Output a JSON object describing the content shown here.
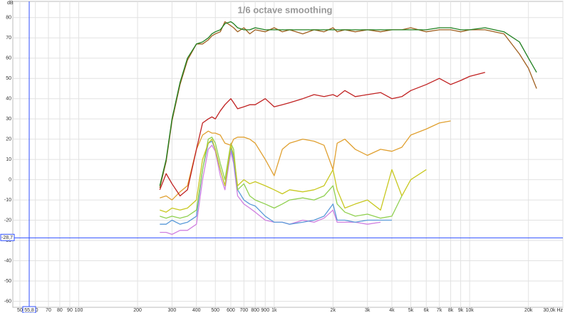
{
  "chart_data": {
    "type": "line",
    "title": "1/6 octave smoothing",
    "y_label": "dB",
    "log_x": true,
    "grid": true,
    "xlim": [
      46,
      30000
    ],
    "ylim": [
      -63,
      88
    ],
    "xticks": [
      50,
      60,
      70,
      80,
      90,
      100,
      200,
      300,
      400,
      500,
      600,
      700,
      800,
      900,
      {
        "value": 1000,
        "label": "1k"
      },
      {
        "value": 2000,
        "label": "2k"
      },
      {
        "value": 3000,
        "label": "3k"
      },
      {
        "value": 4000,
        "label": "4k"
      },
      {
        "value": 5000,
        "label": "5k"
      },
      {
        "value": 6000,
        "label": "6k"
      },
      {
        "value": 7000,
        "label": "7k"
      },
      {
        "value": 8000,
        "label": "8k"
      },
      {
        "value": 9000,
        "label": "9k"
      },
      {
        "value": 10000,
        "label": "10k"
      },
      {
        "value": 20000,
        "label": "20k"
      },
      {
        "value": 30000,
        "label": "30,0k Hz"
      }
    ],
    "yticks": [
      -60,
      -50,
      -40,
      -30,
      -20,
      -10,
      0,
      10,
      20,
      30,
      40,
      50,
      60,
      70,
      80
    ],
    "cursor": {
      "x": {
        "value": 55.8,
        "label": "55,8"
      },
      "y": {
        "value": -28.7,
        "label": "-28,7"
      },
      "color": "#3050ff"
    },
    "x": [
      260,
      280,
      300,
      330,
      360,
      400,
      430,
      460,
      480,
      500,
      530,
      560,
      600,
      620,
      650,
      700,
      750,
      800,
      900,
      1000,
      1100,
      1200,
      1400,
      1600,
      1800,
      2000,
      2100,
      2300,
      2600,
      3000,
      3500,
      4000,
      4500,
      5000,
      6000,
      7000,
      8000,
      9000,
      10000,
      12000,
      15000,
      18000,
      20000,
      22000
    ],
    "series": [
      {
        "color": "#d080e0",
        "values": [
          -26,
          -26,
          -27,
          -25,
          -25,
          -22,
          0,
          15,
          17,
          14,
          2,
          -5,
          14,
          8,
          -8,
          -12,
          -14,
          -16,
          -20,
          -21,
          -21,
          -22,
          -20,
          -21,
          -19,
          -15,
          -21,
          -21,
          -21,
          -22,
          -21,
          null,
          null,
          null,
          null,
          null,
          null,
          null,
          null,
          null,
          null,
          null,
          null,
          null
        ]
      },
      {
        "color": "#5a9ad8",
        "values": [
          -22,
          -22,
          -20,
          -22,
          -21,
          -18,
          5,
          18,
          19,
          15,
          5,
          -3,
          16,
          10,
          -5,
          -10,
          -12,
          -13,
          -18,
          -21,
          -21,
          -22,
          -21,
          -20,
          -18,
          -12,
          -20,
          -20,
          -21,
          -20,
          -20,
          -20,
          null,
          null,
          null,
          null,
          null,
          null,
          null,
          null,
          null,
          null,
          null,
          null
        ]
      },
      {
        "color": "#90d050",
        "values": [
          -18,
          -19,
          -18,
          -19,
          -18,
          -15,
          5,
          20,
          21,
          18,
          8,
          0,
          18,
          15,
          -5,
          -2,
          -8,
          -10,
          -12,
          -14,
          -12,
          -10,
          -9,
          -10,
          -8,
          -3,
          -12,
          -16,
          -18,
          -17,
          -19,
          -18,
          -8,
          null,
          null,
          null,
          null,
          null,
          null,
          null,
          null,
          null,
          null,
          null
        ]
      },
      {
        "color": "#c8c820",
        "values": [
          -15,
          -16,
          -14,
          -15,
          -14,
          -10,
          10,
          18,
          20,
          15,
          5,
          -3,
          17,
          12,
          -3,
          0,
          -2,
          -1,
          -3,
          -5,
          -7,
          -5,
          -6,
          -5,
          -3,
          5,
          -5,
          -14,
          -12,
          -10,
          -15,
          5,
          -8,
          0,
          5,
          null,
          null,
          null,
          null,
          null,
          null,
          null,
          null,
          null
        ]
      },
      {
        "color": "#e0a030",
        "values": [
          -9,
          -8,
          -10,
          -6,
          -3,
          15,
          22,
          24,
          23,
          23,
          22,
          18,
          17,
          20,
          21,
          21,
          20,
          18,
          10,
          2,
          15,
          18,
          20,
          19,
          17,
          5,
          18,
          20,
          15,
          12,
          15,
          14,
          16,
          22,
          25,
          28,
          29,
          null,
          null,
          null,
          null,
          null,
          null,
          null
        ]
      },
      {
        "color": "#c02020",
        "values": [
          -5,
          3,
          -2,
          -8,
          -5,
          15,
          28,
          30,
          31,
          30,
          34,
          37,
          40,
          38,
          35,
          36,
          37,
          37,
          40,
          36,
          37,
          38,
          40,
          42,
          41,
          42,
          41,
          44,
          41,
          42,
          43,
          40,
          41,
          44,
          47,
          50,
          47,
          49,
          51,
          53,
          null,
          null,
          null,
          null
        ]
      },
      {
        "color": "#a06020",
        "values": [
          -4,
          9,
          29,
          47,
          59,
          67,
          67,
          69,
          71,
          72,
          73,
          78,
          76,
          75,
          73,
          75,
          72,
          74,
          73,
          75,
          73,
          74,
          72,
          74,
          73,
          75,
          73,
          74,
          73,
          74,
          73,
          74,
          74,
          75,
          73,
          74,
          74,
          73,
          74,
          74,
          72,
          62,
          55,
          45
        ]
      },
      {
        "color": "#208020",
        "values": [
          -3,
          10,
          30,
          48,
          60,
          67,
          68,
          70,
          72,
          73,
          74,
          77,
          78,
          77,
          75,
          74,
          74,
          75,
          74,
          74,
          74,
          74,
          74,
          74,
          74,
          74,
          74,
          74,
          74,
          74,
          74,
          74,
          74,
          74,
          74,
          75,
          75,
          74,
          74,
          75,
          73,
          68,
          60,
          53
        ]
      }
    ]
  }
}
